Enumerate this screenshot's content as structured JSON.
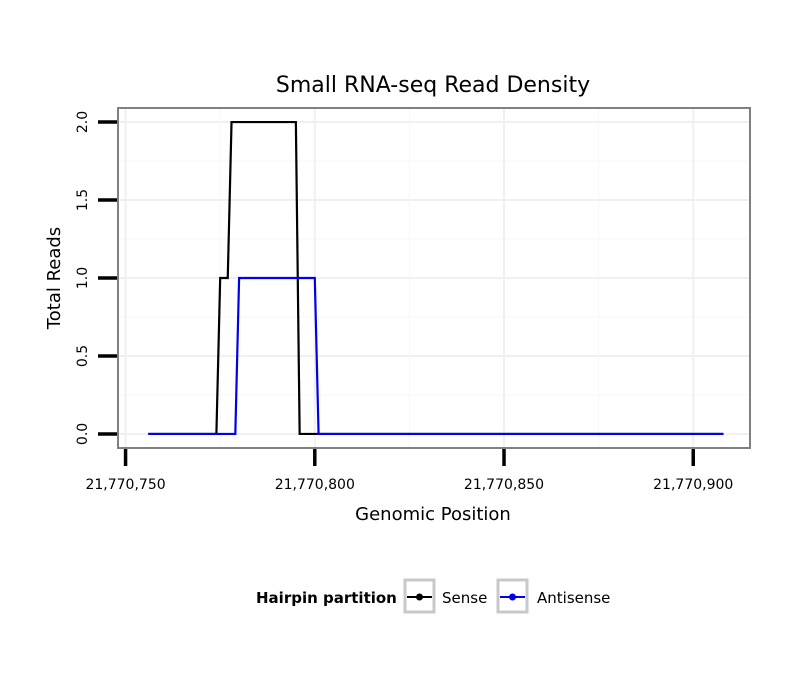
{
  "chart_data": {
    "type": "line",
    "title": "Small RNA-seq Read Density",
    "xlabel": "Genomic Position",
    "ylabel": "Total Reads",
    "xlim": [
      21770748,
      21770915
    ],
    "ylim": [
      -0.09,
      2.09
    ],
    "x_ticks": [
      21770750,
      21770800,
      21770850,
      21770900
    ],
    "x_tick_labels": [
      "21,770,750",
      "21,770,800",
      "21,770,850",
      "21,770,900"
    ],
    "y_ticks": [
      0,
      0.5,
      1,
      1.5,
      2
    ],
    "y_tick_labels": [
      "0.0",
      "0.5",
      "1.0",
      "1.5",
      "2.0"
    ],
    "grid": true,
    "legend": {
      "title": "Hairpin partition",
      "position": "bottom",
      "entries": [
        "Sense",
        "Antisense"
      ]
    },
    "series": [
      {
        "name": "Sense",
        "color": "#000000",
        "x": [
          21770756,
          21770774,
          21770775,
          21770776,
          21770777,
          21770778,
          21770795,
          21770796,
          21770908
        ],
        "y": [
          0,
          0,
          1,
          1,
          1,
          2,
          2,
          0,
          0
        ]
      },
      {
        "name": "Antisense",
        "color": "#0000ee",
        "x": [
          21770756,
          21770779,
          21770780,
          21770800,
          21770801,
          21770908
        ],
        "y": [
          0,
          0,
          1,
          1,
          0,
          0
        ]
      }
    ]
  }
}
